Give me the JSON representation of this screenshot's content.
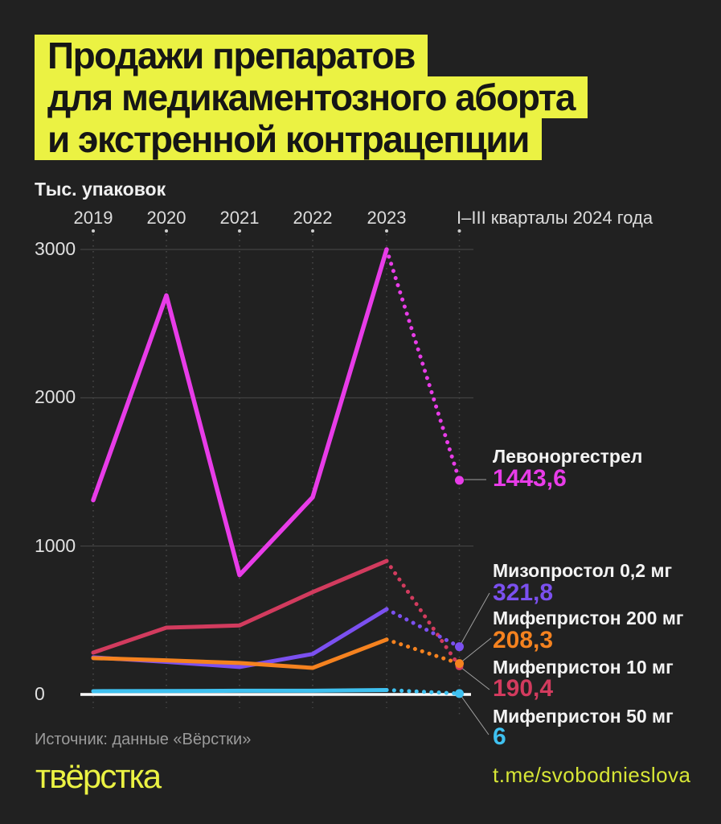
{
  "title": {
    "line1": "Продажи препаратов",
    "line2": "для медикаментозного аборта",
    "line3": "и экстренной контрацепции"
  },
  "source": "Источник: данные «Вёрстки»",
  "logo": "твёрстка",
  "telegram": "t.me/svobodnieslova",
  "colors": {
    "background": "#212121",
    "accent_yellow": "#ebf243",
    "grid": "#4a4a4a",
    "grid_dot_bright": "#cdcdcd",
    "zero_axis": "#ffffff",
    "connector": "#a0a0a0",
    "text_light": "#e0e0e0",
    "text_muted": "#9b9b9b"
  },
  "chart_data": {
    "type": "line",
    "title": "Продажи препаратов для медикаментозного аборта и экстренной контрацепции",
    "units_label": "Тыс. упаковок",
    "x_labels": [
      "2019",
      "2020",
      "2021",
      "2022",
      "2023",
      "I–III кварталы 2024 года"
    ],
    "y_ticks": [
      3000,
      2000,
      1000,
      0
    ],
    "ylim": [
      0,
      3000
    ],
    "grid": "horizontal solid gray lines, vertical dotted gray lines, white zero axis",
    "legend_position": "right, per-series labels with value callouts",
    "dotted_last_segment": true,
    "series": [
      {
        "id": "levonorgestrel",
        "name": "Левоноргестрел",
        "color": "#e83ce8",
        "values": [
          1310,
          2690,
          805,
          1330,
          3000,
          1443.6
        ],
        "final_value_label": "1443,6"
      },
      {
        "id": "mizoprostol-0-2",
        "name": "Мизопростол 0,2 мг",
        "color": "#7b50f0",
        "values": [
          250,
          220,
          185,
          273,
          575,
          321.8
        ],
        "final_value_label": "321,8"
      },
      {
        "id": "mifepriston-200",
        "name": "Мифепристон 200 мг",
        "color": "#f5821f",
        "values": [
          245,
          230,
          212,
          179,
          370,
          208.3
        ],
        "final_value_label": "208,3"
      },
      {
        "id": "mifepriston-10",
        "name": "Мифепристон 10 мг",
        "color": "#d23b5e",
        "values": [
          282,
          450,
          465,
          690,
          900,
          190.4
        ],
        "final_value_label": "190,4"
      },
      {
        "id": "mifepriston-50",
        "name": "Мифепристон 50 мг",
        "color": "#3fc1f0",
        "values": [
          22,
          23,
          25,
          25,
          30,
          6
        ],
        "final_value_label": "6"
      }
    ]
  }
}
